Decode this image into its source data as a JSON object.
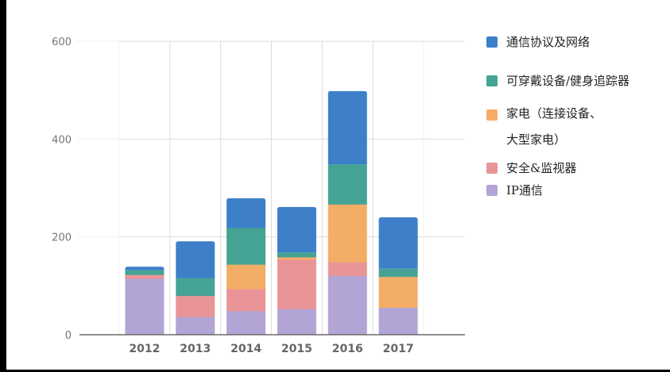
{
  "chart_data": {
    "type": "bar",
    "stacked": true,
    "title": "",
    "xlabel": "",
    "ylabel": "",
    "categories": [
      "2012",
      "2013",
      "2014",
      "2015",
      "2016",
      "2017"
    ],
    "ylim": [
      0,
      600
    ],
    "yticks": [
      "0",
      "200",
      "400",
      "600"
    ],
    "grid": true,
    "legend_position": "right",
    "series": [
      {
        "name": "IP通信",
        "color": "#b2a4d4",
        "values": [
          115,
          37,
          49,
          53,
          121,
          56
        ]
      },
      {
        "name": "安全&监视器",
        "color": "#e99597",
        "values": [
          8,
          43,
          45,
          101,
          28,
          0
        ]
      },
      {
        "name": "家电（连接设备、\n大型家电）",
        "color": "#f4ad66",
        "values": [
          0,
          0,
          50,
          5,
          118,
          63
        ]
      },
      {
        "name": "可穿戴设备/健身追踪器",
        "color": "#45a394",
        "values": [
          9,
          36,
          74,
          9,
          81,
          16
        ]
      },
      {
        "name": "通信协议及网络",
        "color": "#3d80c8",
        "values": [
          7,
          75,
          61,
          93,
          150,
          105
        ]
      }
    ],
    "legend_order": [
      4,
      3,
      2,
      1,
      0
    ]
  }
}
